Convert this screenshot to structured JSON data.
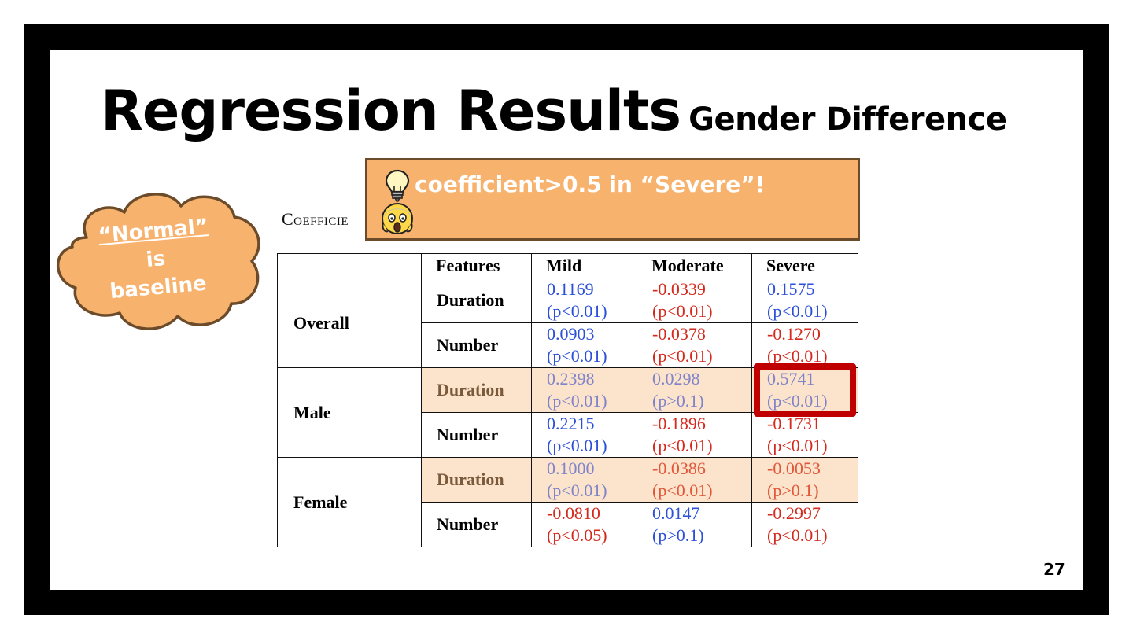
{
  "slide": {
    "title": "Regression Results",
    "subtitle": "Gender Difference",
    "page_number": "27"
  },
  "callout": {
    "text": "coefficient>0.5 in “Severe”!",
    "icons": [
      "lightbulb-icon",
      "screaming-face-icon"
    ],
    "background": "#f7b26e"
  },
  "cloud": {
    "line1": "“Normal”",
    "line2": "is",
    "line3": "baseline",
    "color": "#f7b26e"
  },
  "table": {
    "caption": "Coefficie",
    "headers": [
      "Features",
      "Mild",
      "Moderate",
      "Severe"
    ],
    "groups": [
      {
        "name": "Overall",
        "rows": [
          {
            "feature": "Duration",
            "highlight": false,
            "cells": [
              {
                "coef": "0.1169",
                "p": "(p<0.01)",
                "sign": "pos"
              },
              {
                "coef": "-0.0339",
                "p": "(p<0.01)",
                "sign": "neg"
              },
              {
                "coef": "0.1575",
                "p": "(p<0.01)",
                "sign": "pos"
              }
            ]
          },
          {
            "feature": "Number",
            "highlight": false,
            "cells": [
              {
                "coef": "0.0903",
                "p": "(p<0.01)",
                "sign": "pos"
              },
              {
                "coef": "-0.0378",
                "p": "(p<0.01)",
                "sign": "neg"
              },
              {
                "coef": "-0.1270",
                "p": "(p<0.01)",
                "sign": "neg"
              }
            ]
          }
        ]
      },
      {
        "name": "Male",
        "rows": [
          {
            "feature": "Duration",
            "highlight": true,
            "cells": [
              {
                "coef": "0.2398",
                "p": "(p<0.01)",
                "sign": "pos"
              },
              {
                "coef": "0.0298",
                "p": "(p>0.1)",
                "sign": "pos"
              },
              {
                "coef": "0.5741",
                "p": "(p<0.01)",
                "sign": "pos"
              }
            ]
          },
          {
            "feature": "Number",
            "highlight": false,
            "cells": [
              {
                "coef": "0.2215",
                "p": "(p<0.01)",
                "sign": "pos"
              },
              {
                "coef": "-0.1896",
                "p": "(p<0.01)",
                "sign": "neg"
              },
              {
                "coef": "-0.1731",
                "p": "(p<0.01)",
                "sign": "neg"
              }
            ]
          }
        ]
      },
      {
        "name": "Female",
        "rows": [
          {
            "feature": "Duration",
            "highlight": true,
            "cells": [
              {
                "coef": "0.1000",
                "p": "(p<0.01)",
                "sign": "pos"
              },
              {
                "coef": "-0.0386",
                "p": "(p<0.01)",
                "sign": "neg"
              },
              {
                "coef": "-0.0053",
                "p": "(p>0.1)",
                "sign": "neg"
              }
            ]
          },
          {
            "feature": "Number",
            "highlight": false,
            "cells": [
              {
                "coef": "-0.0810",
                "p": "(p<0.05)",
                "sign": "neg"
              },
              {
                "coef": "0.0147",
                "p": "(p>0.1)",
                "sign": "pos"
              },
              {
                "coef": "-0.2997",
                "p": "(p<0.01)",
                "sign": "neg"
              }
            ]
          }
        ]
      }
    ],
    "colors": {
      "positive": "#2b4fd8",
      "negative": "#d42a1e",
      "highlight_row": "#fbe3cc",
      "emphasis_box": "#c00000"
    }
  }
}
